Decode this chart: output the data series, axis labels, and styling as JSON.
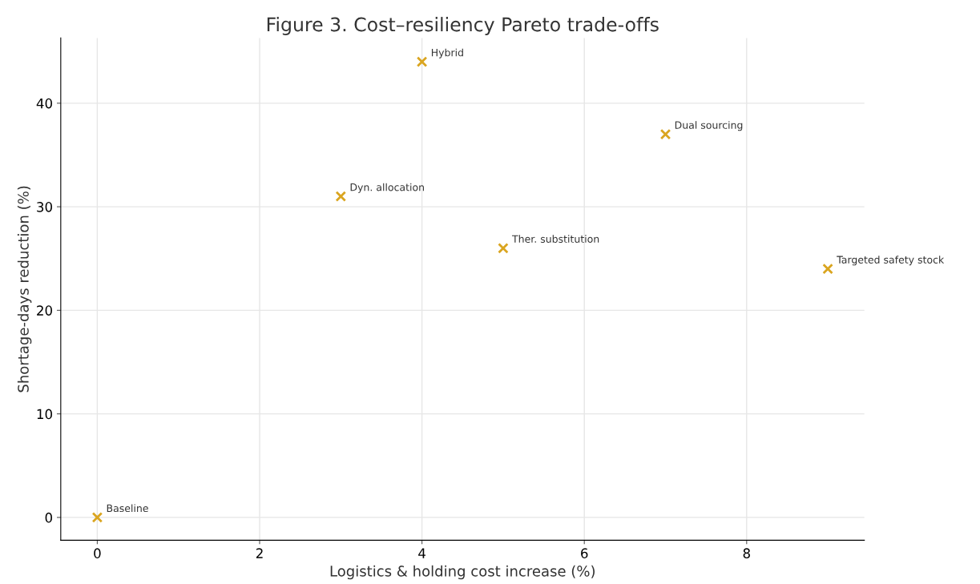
{
  "chart_data": {
    "type": "scatter",
    "title": "Figure 3. Cost–resiliency Pareto trade-offs",
    "xlabel": "Logistics & holding cost increase (%)",
    "ylabel": "Shortage-days reduction (%)",
    "x": [
      0,
      3,
      4,
      5,
      7,
      9
    ],
    "series": [
      {
        "color": "#daa520",
        "values": [
          0,
          31,
          44,
          26,
          37,
          24
        ]
      }
    ],
    "annotations": [
      {
        "text": "Baseline",
        "x": 0,
        "y": 0
      },
      {
        "text": "Dyn. allocation",
        "x": 3,
        "y": 31
      },
      {
        "text": "Hybrid",
        "x": 4,
        "y": 44
      },
      {
        "text": "Ther. substitution",
        "x": 5,
        "y": 26
      },
      {
        "text": "Dual sourcing",
        "x": 7,
        "y": 37
      },
      {
        "text": "Targeted safety stock",
        "x": 9,
        "y": 24
      }
    ],
    "xlim": [
      -0.45,
      9.45
    ],
    "ylim": [
      -2.2,
      46.3
    ],
    "xticks": [
      0,
      2,
      4,
      6,
      8
    ],
    "yticks": [
      0,
      10,
      20,
      30,
      40
    ],
    "grid": true,
    "marker": "cross"
  }
}
